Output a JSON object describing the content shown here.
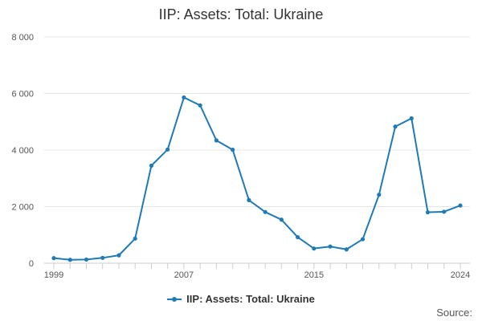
{
  "chart_data": {
    "type": "line",
    "title": "IIP: Assets: Total: Ukraine",
    "x": [
      1999,
      2000,
      2001,
      2002,
      2003,
      2004,
      2005,
      2006,
      2007,
      2008,
      2009,
      2010,
      2011,
      2012,
      2013,
      2014,
      2015,
      2016,
      2017,
      2018,
      2019,
      2020,
      2021,
      2022,
      2023,
      2024
    ],
    "series": [
      {
        "name": "IIP: Assets: Total: Ukraine",
        "values": [
          180,
          120,
          130,
          190,
          280,
          870,
          3450,
          4020,
          5860,
          5580,
          4340,
          4010,
          2230,
          1810,
          1540,
          920,
          520,
          590,
          490,
          850,
          2420,
          4830,
          5120,
          1800,
          1820,
          2040
        ]
      }
    ],
    "xticks": [
      "1999",
      "2007",
      "2015",
      "2024"
    ],
    "yticks": [
      0,
      2000,
      4000,
      6000,
      8000
    ],
    "ytick_labels": [
      "0",
      "2 000",
      "4 000",
      "6 000",
      "8 000"
    ],
    "xlim": [
      1999,
      2024
    ],
    "ylim": [
      0,
      8000
    ],
    "xlabel": "",
    "ylabel": "",
    "grid": "horizontal",
    "legend_position": "bottom-center",
    "colors": {
      "line": "#1f7ab5",
      "grid": "#e6e6e6",
      "axis": "#cccccc",
      "text": "#333333"
    }
  },
  "source_label": "Source:"
}
